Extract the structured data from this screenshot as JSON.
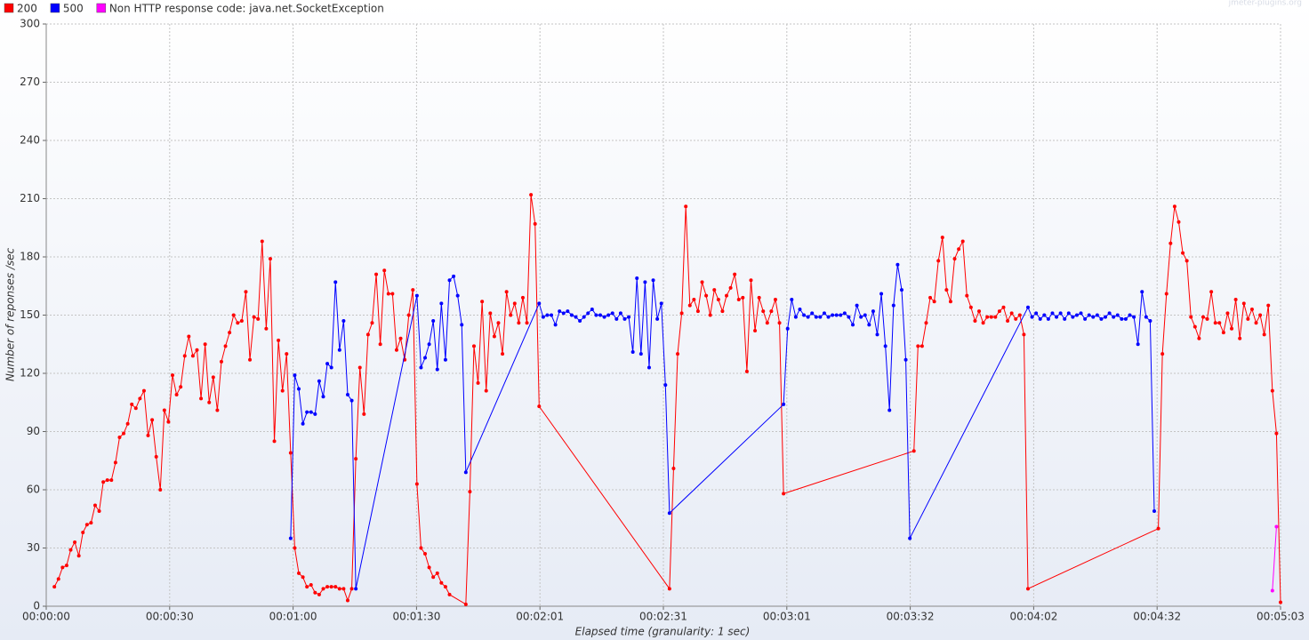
{
  "chart_data": {
    "type": "line",
    "watermark": "jmeter-plugins.org",
    "x_label": "Elapsed time (granularity: 1 sec)",
    "y_label": "Number of reponses /sec",
    "legend": "top-left",
    "grid": true,
    "xlim": [
      0,
      303
    ],
    "ylim": [
      0,
      300
    ],
    "yticks": [
      0,
      30,
      60,
      90,
      120,
      150,
      180,
      210,
      240,
      270,
      300
    ],
    "xticks": [
      {
        "value": 0,
        "label": "00:00:00"
      },
      {
        "value": 30.3,
        "label": "00:00:30"
      },
      {
        "value": 60.6,
        "label": "00:01:00"
      },
      {
        "value": 90.9,
        "label": "00:01:30"
      },
      {
        "value": 121.2,
        "label": "00:02:01"
      },
      {
        "value": 151.5,
        "label": "00:02:31"
      },
      {
        "value": 181.8,
        "label": "00:03:01"
      },
      {
        "value": 212.1,
        "label": "00:03:32"
      },
      {
        "value": 242.4,
        "label": "00:04:02"
      },
      {
        "value": 272.7,
        "label": "00:04:32"
      },
      {
        "value": 303,
        "label": "00:05:03"
      }
    ],
    "series": [
      {
        "name": "200",
        "color": "#ff0000",
        "x": [
          2,
          3,
          4,
          5,
          6,
          7,
          8,
          9,
          10,
          11,
          12,
          13,
          14,
          15,
          16,
          17,
          18,
          19,
          20,
          21,
          22,
          23,
          24,
          25,
          26,
          27,
          28,
          29,
          30,
          31,
          32,
          33,
          34,
          35,
          36,
          37,
          38,
          39,
          40,
          41,
          42,
          43,
          44,
          45,
          46,
          47,
          48,
          49,
          50,
          51,
          52,
          53,
          54,
          55,
          56,
          57,
          58,
          59,
          60,
          61,
          62,
          63,
          64,
          65,
          66,
          67,
          68,
          69,
          70,
          71,
          72,
          73,
          74,
          75,
          76,
          77,
          78,
          79,
          80,
          81,
          82,
          83,
          84,
          85,
          86,
          87,
          88,
          89,
          90,
          91,
          92,
          93,
          94,
          95,
          96,
          97,
          98,
          99,
          103,
          104,
          105,
          106,
          107,
          108,
          109,
          110,
          111,
          112,
          113,
          114,
          115,
          116,
          117,
          118,
          119,
          120,
          121,
          153,
          154,
          155,
          156,
          157,
          158,
          159,
          160,
          161,
          162,
          163,
          164,
          165,
          166,
          167,
          168,
          169,
          170,
          171,
          172,
          173,
          174,
          175,
          176,
          177,
          178,
          179,
          180,
          181,
          213,
          214,
          215,
          216,
          217,
          218,
          219,
          220,
          221,
          222,
          223,
          224,
          225,
          226,
          227,
          228,
          229,
          230,
          231,
          232,
          233,
          234,
          235,
          236,
          237,
          238,
          239,
          240,
          241,
          273,
          274,
          275,
          276,
          277,
          278,
          279,
          280,
          281,
          282,
          283,
          284,
          285,
          286,
          287,
          288,
          289,
          290,
          291,
          292,
          293,
          294,
          295,
          296,
          297,
          298,
          299,
          300,
          301,
          302,
          303
        ],
        "values": [
          10,
          14,
          20,
          21,
          29,
          33,
          26,
          38,
          42,
          43,
          52,
          49,
          64,
          65,
          65,
          74,
          87,
          89,
          94,
          104,
          102,
          107,
          111,
          88,
          96,
          77,
          60,
          101,
          95,
          119,
          109,
          113,
          129,
          139,
          129,
          132,
          107,
          135,
          105,
          118,
          101,
          126,
          134,
          141,
          150,
          146,
          147,
          162,
          127,
          149,
          148,
          188,
          143,
          179,
          85,
          137,
          111,
          130,
          79,
          30,
          17,
          15,
          10,
          11,
          7,
          6,
          9,
          10,
          10,
          10,
          9,
          9,
          3,
          9,
          76,
          123,
          99,
          140,
          146,
          171,
          135,
          173,
          161,
          161,
          132,
          138,
          127,
          150,
          163,
          63,
          30,
          27,
          20,
          15,
          17,
          12,
          10,
          6,
          1,
          59,
          134,
          115,
          157,
          111,
          151,
          139,
          146,
          130,
          162,
          150,
          156,
          146,
          159,
          146,
          212,
          197,
          103,
          9,
          71,
          130,
          151,
          206,
          155,
          158,
          152,
          167,
          160,
          150,
          163,
          158,
          152,
          160,
          164,
          171,
          158,
          159,
          121,
          168,
          142,
          159,
          152,
          146,
          152,
          158,
          146,
          58,
          80,
          134,
          134,
          146,
          159,
          157,
          178,
          190,
          163,
          157,
          179,
          184,
          188,
          160,
          154,
          147,
          152,
          146,
          149,
          149,
          149,
          152,
          154,
          147,
          151,
          148,
          150,
          140,
          9,
          40,
          130,
          161,
          187,
          206,
          198,
          182,
          178,
          149,
          144,
          138,
          149,
          148,
          162,
          146,
          146,
          141,
          151,
          143,
          158,
          138,
          156,
          148,
          153,
          146,
          150,
          140,
          155,
          111,
          89,
          2
        ]
      },
      {
        "name": "500",
        "color": "#0000ff",
        "x": [
          60,
          61,
          62,
          63,
          64,
          65,
          66,
          67,
          68,
          69,
          70,
          71,
          72,
          73,
          74,
          75,
          76,
          91,
          92,
          93,
          94,
          95,
          96,
          97,
          98,
          99,
          100,
          101,
          102,
          103,
          121,
          122,
          123,
          124,
          125,
          126,
          127,
          128,
          129,
          130,
          131,
          132,
          133,
          134,
          135,
          136,
          137,
          138,
          139,
          140,
          141,
          142,
          143,
          144,
          145,
          146,
          147,
          148,
          149,
          150,
          151,
          152,
          153,
          181,
          182,
          183,
          184,
          185,
          186,
          187,
          188,
          189,
          190,
          191,
          192,
          193,
          194,
          195,
          196,
          197,
          198,
          199,
          200,
          201,
          202,
          203,
          204,
          205,
          206,
          207,
          208,
          209,
          210,
          211,
          212,
          241,
          242,
          243,
          244,
          245,
          246,
          247,
          248,
          249,
          250,
          251,
          252,
          253,
          254,
          255,
          256,
          257,
          258,
          259,
          260,
          261,
          262,
          263,
          264,
          265,
          266,
          267,
          268,
          269,
          270,
          271,
          272
        ],
        "values": [
          35,
          119,
          112,
          94,
          100,
          100,
          99,
          116,
          108,
          125,
          123,
          167,
          132,
          147,
          109,
          106,
          9,
          160,
          123,
          128,
          135,
          147,
          122,
          156,
          127,
          168,
          170,
          160,
          145,
          69,
          156,
          149,
          150,
          150,
          145,
          152,
          151,
          152,
          150,
          149,
          147,
          149,
          151,
          153,
          150,
          150,
          149,
          150,
          151,
          148,
          151,
          148,
          149,
          131,
          169,
          130,
          167,
          123,
          168,
          148,
          156,
          114,
          48,
          104,
          143,
          158,
          149,
          153,
          150,
          149,
          151,
          149,
          149,
          151,
          149,
          150,
          150,
          150,
          151,
          149,
          145,
          155,
          149,
          150,
          145,
          152,
          140,
          161,
          134,
          101,
          155,
          176,
          163,
          127,
          35,
          154,
          149,
          151,
          148,
          150,
          148,
          151,
          149,
          151,
          148,
          151,
          149,
          150,
          151,
          148,
          150,
          149,
          150,
          148,
          149,
          151,
          149,
          150,
          148,
          148,
          150,
          149,
          135,
          162,
          149,
          147,
          49
        ]
      },
      {
        "name": "Non HTTP response code: java.net.SocketException",
        "color": "#ff00ff",
        "x": [
          301,
          302
        ],
        "values": [
          8,
          41
        ]
      }
    ]
  }
}
